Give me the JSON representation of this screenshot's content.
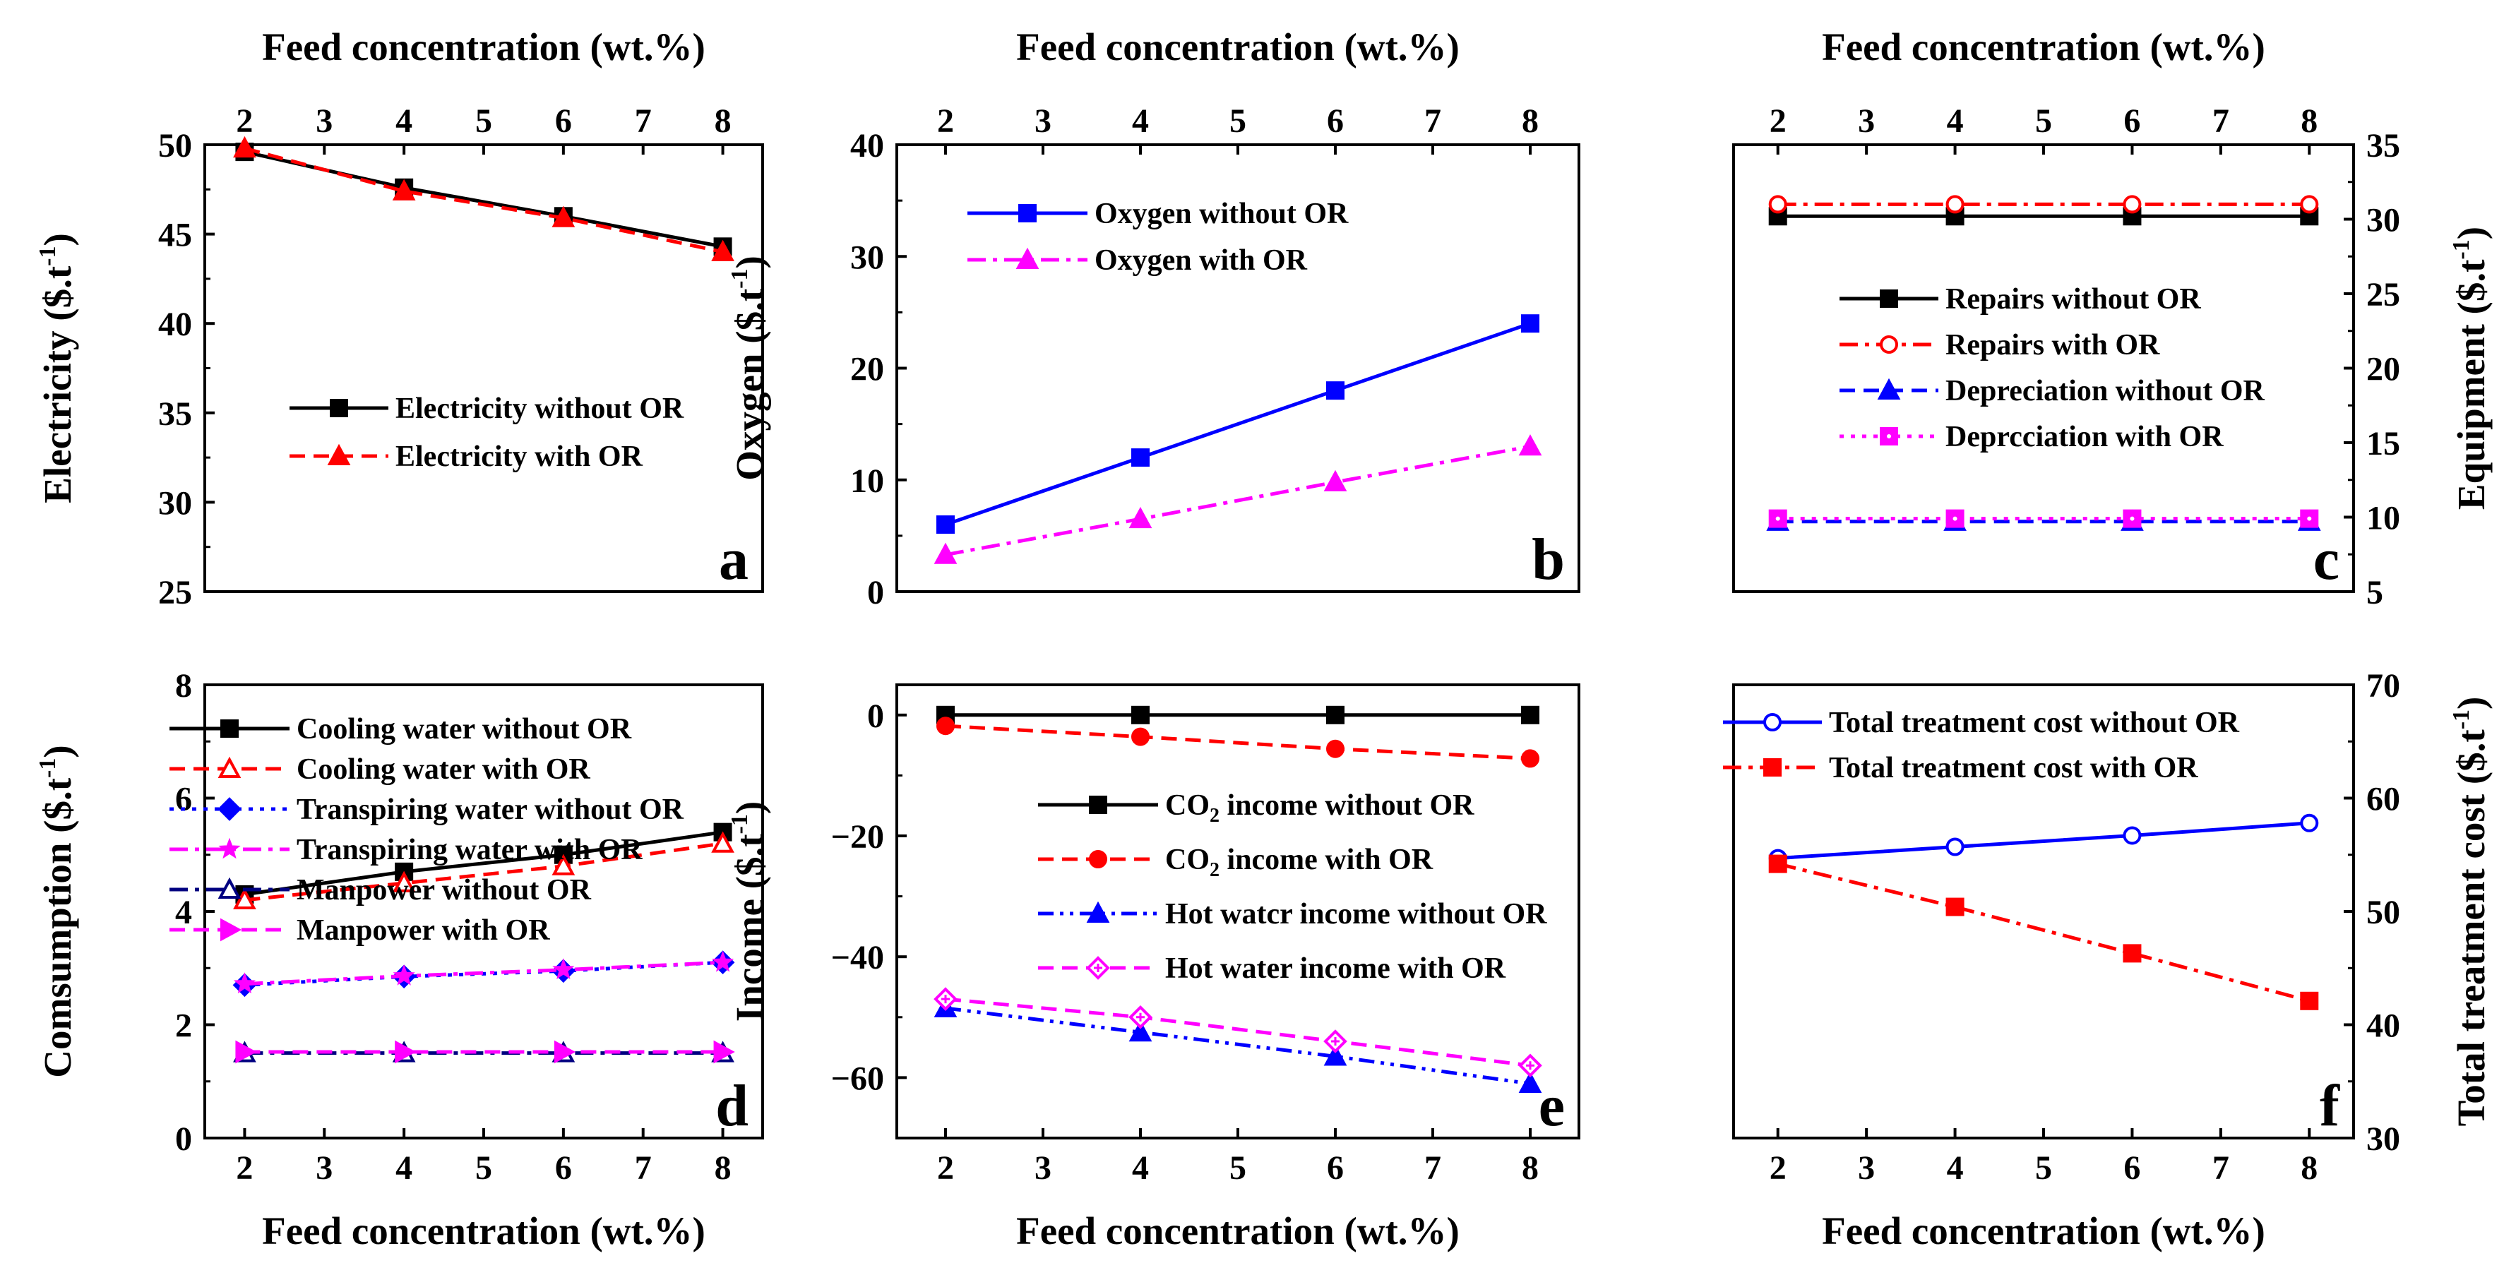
{
  "figure": {
    "panel_count": 6,
    "background": "#ffffff"
  },
  "chart_data": [
    {
      "id": "a",
      "type": "line",
      "panel_letter": "a",
      "top_xlabel": "Feed concentration (wt.%)",
      "xlabel": "",
      "ylabel": "Electricity ($.t-1)",
      "ylabel_base": "Electricity ($.t",
      "ylabel_sup": "-1",
      "ylabel_tail": ")",
      "xlim": [
        1.5,
        8.5
      ],
      "xticks": [
        2,
        3,
        4,
        5,
        6,
        7,
        8
      ],
      "top_ticks": true,
      "bottom_ticks": false,
      "ylim": [
        25,
        50
      ],
      "yticks": [
        25,
        30,
        35,
        40,
        45,
        50
      ],
      "series": [
        {
          "name": "Electricity without OR",
          "x": [
            2,
            4,
            6,
            8
          ],
          "values": [
            49.6,
            47.6,
            46.0,
            44.3
          ],
          "color": "#000000",
          "dash": "solid",
          "marker": "square",
          "fill": true
        },
        {
          "name": "Electricity with OR",
          "x": [
            2,
            4,
            6,
            8
          ],
          "values": [
            49.8,
            47.4,
            45.9,
            44.0
          ],
          "color": "#ff0000",
          "dash": "dash",
          "marker": "triangle",
          "fill": true
        }
      ]
    },
    {
      "id": "b",
      "type": "line",
      "panel_letter": "b",
      "top_xlabel": "Feed concentration (wt.%)",
      "xlabel": "",
      "ylabel": "Oxygen ($.t-1)",
      "ylabel_base": "Oxygen ($.t",
      "ylabel_sup": "-1",
      "ylabel_tail": ")",
      "xlim": [
        1.5,
        8.5
      ],
      "xticks": [
        2,
        3,
        4,
        5,
        6,
        7,
        8
      ],
      "top_ticks": true,
      "bottom_ticks": false,
      "ylim": [
        0,
        40
      ],
      "yticks": [
        0,
        10,
        20,
        30,
        40
      ],
      "series": [
        {
          "name": "Oxygen without OR",
          "x": [
            2,
            4,
            6,
            8
          ],
          "values": [
            6.0,
            12.0,
            18.0,
            24.0
          ],
          "color": "#0000ff",
          "dash": "solid",
          "marker": "square",
          "fill": true
        },
        {
          "name": "Oxygen with OR",
          "x": [
            2,
            4,
            6,
            8
          ],
          "values": [
            3.3,
            6.5,
            9.8,
            13.0
          ],
          "color": "#ff00ff",
          "dash": "dashdot",
          "marker": "triangle",
          "fill": true
        }
      ]
    },
    {
      "id": "c",
      "type": "line",
      "panel_letter": "c",
      "top_xlabel": "Feed concentration (wt.%)",
      "xlabel": "",
      "ylabel": "Equipment ($.t-1)",
      "ylabel_base": "Equipment ($.t",
      "ylabel_sup": "-1",
      "ylabel_tail": ")",
      "y_axis_side": "right",
      "xlim": [
        1.5,
        8.5
      ],
      "xticks": [
        2,
        3,
        4,
        5,
        6,
        7,
        8
      ],
      "top_ticks": true,
      "bottom_ticks": false,
      "ylim": [
        5,
        35
      ],
      "yticks": [
        5,
        10,
        15,
        20,
        25,
        30,
        35
      ],
      "series": [
        {
          "name": "Repairs without OR",
          "x": [
            2,
            4,
            6,
            8
          ],
          "values": [
            30.2,
            30.2,
            30.2,
            30.2
          ],
          "color": "#000000",
          "dash": "solid",
          "marker": "square",
          "fill": true
        },
        {
          "name": "Repairs with OR",
          "x": [
            2,
            4,
            6,
            8
          ],
          "values": [
            31.0,
            31.0,
            31.0,
            31.0
          ],
          "color": "#ff0000",
          "dash": "dashdot",
          "marker": "circle",
          "fill": false
        },
        {
          "name": "Depreciation without OR",
          "x": [
            2,
            4,
            6,
            8
          ],
          "values": [
            9.7,
            9.7,
            9.7,
            9.7
          ],
          "color": "#0000ff",
          "dash": "dash",
          "marker": "triangle",
          "fill": true
        },
        {
          "name": "Deprcciation with OR",
          "x": [
            2,
            4,
            6,
            8
          ],
          "values": [
            9.9,
            9.9,
            9.9,
            9.9
          ],
          "color": "#ff00ff",
          "dash": "dot",
          "marker": "squaredot",
          "fill": true
        }
      ]
    },
    {
      "id": "d",
      "type": "line",
      "panel_letter": "d",
      "top_xlabel": "",
      "xlabel": "Feed concentration (wt.%)",
      "ylabel": "Comsumption ($.t-1)",
      "ylabel_base": "Comsumption ($.t",
      "ylabel_sup": "-1",
      "ylabel_tail": ")",
      "xlim": [
        1.5,
        8.5
      ],
      "xticks": [
        2,
        3,
        4,
        5,
        6,
        7,
        8
      ],
      "top_ticks": false,
      "bottom_ticks": true,
      "ylim": [
        0,
        8
      ],
      "yticks": [
        0,
        2,
        4,
        6,
        8
      ],
      "series": [
        {
          "name": "Cooling water without OR",
          "x": [
            2,
            4,
            6,
            8
          ],
          "values": [
            4.3,
            4.7,
            5.0,
            5.4
          ],
          "color": "#000000",
          "dash": "solid",
          "marker": "square",
          "fill": true
        },
        {
          "name": "Cooling water with OR",
          "x": [
            2,
            4,
            6,
            8
          ],
          "values": [
            4.2,
            4.5,
            4.8,
            5.2
          ],
          "color": "#ff0000",
          "dash": "dash",
          "marker": "triangle",
          "fill": false
        },
        {
          "name": "Transpiring water without OR",
          "x": [
            2,
            4,
            6,
            8
          ],
          "values": [
            2.7,
            2.85,
            2.95,
            3.1
          ],
          "color": "#0000ff",
          "dash": "dot",
          "marker": "diamond",
          "fill": true
        },
        {
          "name": "Transpiring water with OR",
          "x": [
            2,
            4,
            6,
            8
          ],
          "values": [
            2.72,
            2.86,
            2.97,
            3.1
          ],
          "color": "#ff00ff",
          "dash": "dashdot",
          "marker": "star",
          "fill": true
        },
        {
          "name": "Manpower without OR",
          "x": [
            2,
            4,
            6,
            8
          ],
          "values": [
            1.5,
            1.5,
            1.5,
            1.5
          ],
          "color": "#000080",
          "dash": "dashdot",
          "marker": "triangle",
          "fill": false
        },
        {
          "name": "Manpower with OR",
          "x": [
            2,
            4,
            6,
            8
          ],
          "values": [
            1.52,
            1.52,
            1.52,
            1.52
          ],
          "color": "#ff00ff",
          "dash": "dash",
          "marker": "righttri",
          "fill": true
        }
      ]
    },
    {
      "id": "e",
      "type": "line",
      "panel_letter": "e",
      "top_xlabel": "",
      "xlabel": "Feed concentration (wt.%)",
      "ylabel": "Income ($.t-1)",
      "ylabel_base": "Income ($.t",
      "ylabel_sup": "-1",
      "ylabel_tail": ")",
      "xlim": [
        1.5,
        8.5
      ],
      "xticks": [
        2,
        3,
        4,
        5,
        6,
        7,
        8
      ],
      "top_ticks": false,
      "bottom_ticks": true,
      "ylim": [
        -70,
        5
      ],
      "yticks": [
        -60,
        -40,
        -20,
        0
      ],
      "series": [
        {
          "name": "CO2 income without OR",
          "label_base": "CO",
          "label_sub": "2",
          "label_tail": " income without OR",
          "x": [
            2,
            4,
            6,
            8
          ],
          "values": [
            0,
            0,
            0,
            0
          ],
          "color": "#000000",
          "dash": "solid",
          "marker": "square",
          "fill": true
        },
        {
          "name": "CO2 income  with OR",
          "label_base": "CO",
          "label_sub": "2",
          "label_tail": " income  with OR",
          "x": [
            2,
            4,
            6,
            8
          ],
          "values": [
            -1.8,
            -3.6,
            -5.6,
            -7.2
          ],
          "color": "#ff0000",
          "dash": "dash",
          "marker": "circle",
          "fill": true
        },
        {
          "name": "Hot watcr income without OR",
          "x": [
            2,
            4,
            6,
            8
          ],
          "values": [
            -48.5,
            -52.5,
            -56.5,
            -61.0
          ],
          "color": "#0000ff",
          "dash": "dashdotdot",
          "marker": "triangle",
          "fill": true
        },
        {
          "name": "Hot water income with OR",
          "x": [
            2,
            4,
            6,
            8
          ],
          "values": [
            -47.0,
            -50.0,
            -54.0,
            -58.0
          ],
          "color": "#ff00ff",
          "dash": "dash",
          "marker": "diamondplus",
          "fill": false
        }
      ]
    },
    {
      "id": "f",
      "type": "line",
      "panel_letter": "f",
      "top_xlabel": "",
      "xlabel": "Feed concentration (wt.%)",
      "ylabel": "Total treatment cost ($.t-1)",
      "ylabel_base": "Total treatment cost ($.t",
      "ylabel_sup": "-1",
      "ylabel_tail": ")",
      "y_axis_side": "right",
      "xlim": [
        1.5,
        8.5
      ],
      "xticks": [
        2,
        3,
        4,
        5,
        6,
        7,
        8
      ],
      "top_ticks": false,
      "bottom_ticks": true,
      "ylim": [
        30,
        70
      ],
      "yticks": [
        30,
        40,
        50,
        60,
        70
      ],
      "series": [
        {
          "name": "Total treatment cost without OR",
          "x": [
            2,
            4,
            6,
            8
          ],
          "values": [
            54.7,
            55.7,
            56.7,
            57.8
          ],
          "color": "#0000ff",
          "dash": "solid",
          "marker": "circle",
          "fill": false
        },
        {
          "name": "Total treatment cost with OR",
          "x": [
            2,
            4,
            6,
            8
          ],
          "values": [
            54.2,
            50.4,
            46.3,
            42.1
          ],
          "color": "#ff0000",
          "dash": "dashdot",
          "marker": "square",
          "fill": true
        }
      ]
    }
  ]
}
